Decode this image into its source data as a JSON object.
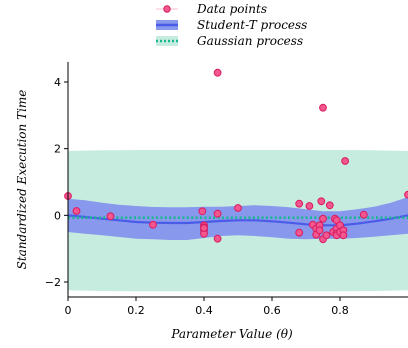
{
  "chart_data": {
    "type": "scatter",
    "xlabel": "Parameter Value (θ)",
    "ylabel": "Standardized Execution Time",
    "xlim": [
      0,
      1.0
    ],
    "ylim": [
      -2.45,
      4.6
    ],
    "x_ticks": [
      0,
      0.2,
      0.4,
      0.6,
      0.8
    ],
    "x_tick_labels": [
      "0",
      "0.2",
      "0.4",
      "0.6",
      "0.8"
    ],
    "y_ticks": [
      -2,
      0,
      2,
      4
    ],
    "y_tick_labels": [
      "−2",
      "0",
      "2",
      "4"
    ],
    "grid": false,
    "legend_position": "top-center",
    "legend": [
      {
        "label": "Data points"
      },
      {
        "label": "Student-T process"
      },
      {
        "label": "Gaussian process"
      }
    ],
    "colors": {
      "points_fill": "#f2578f",
      "points_stroke": "#d81b60",
      "student_t_line": "#4a5be8",
      "student_t_band": "#8898ec",
      "gaussian_line": "#17b890",
      "gaussian_band": "#c6ece0"
    },
    "series": [
      {
        "name": "Data points",
        "type": "scatter",
        "x": [
          0.0,
          0.025,
          0.125,
          0.25,
          0.395,
          0.4,
          0.4,
          0.4,
          0.4,
          0.4,
          0.44,
          0.44,
          0.44,
          0.5,
          0.68,
          0.68,
          0.71,
          0.72,
          0.73,
          0.73,
          0.74,
          0.74,
          0.745,
          0.75,
          0.75,
          0.75,
          0.76,
          0.77,
          0.78,
          0.785,
          0.79,
          0.79,
          0.79,
          0.79,
          0.8,
          0.8,
          0.81,
          0.81,
          0.815,
          0.87,
          1.0
        ],
        "y": [
          0.58,
          0.13,
          -0.03,
          -0.28,
          0.12,
          -0.3,
          -0.36,
          -0.45,
          -0.55,
          -0.38,
          4.28,
          0.05,
          -0.7,
          0.22,
          0.35,
          -0.52,
          0.28,
          -0.28,
          -0.4,
          -0.58,
          -0.3,
          -0.45,
          0.42,
          3.23,
          -0.72,
          -0.1,
          -0.6,
          0.3,
          -0.5,
          -0.1,
          -0.15,
          -0.4,
          -0.55,
          -0.6,
          -0.3,
          -0.5,
          -0.45,
          -0.6,
          1.63,
          0.02,
          0.62
        ]
      },
      {
        "name": "Student-T process",
        "type": "line",
        "x": [
          0.0,
          0.05,
          0.1,
          0.15,
          0.2,
          0.25,
          0.3,
          0.35,
          0.4,
          0.45,
          0.5,
          0.55,
          0.6,
          0.65,
          0.7,
          0.75,
          0.8,
          0.85,
          0.9,
          0.95,
          1.0
        ],
        "y": [
          0.0,
          -0.05,
          -0.1,
          -0.15,
          -0.2,
          -0.22,
          -0.23,
          -0.23,
          -0.2,
          -0.17,
          -0.15,
          -0.15,
          -0.18,
          -0.22,
          -0.27,
          -0.3,
          -0.3,
          -0.25,
          -0.18,
          -0.1,
          0.0
        ],
        "lower": [
          -0.5,
          -0.55,
          -0.6,
          -0.65,
          -0.7,
          -0.72,
          -0.74,
          -0.74,
          -0.68,
          -0.62,
          -0.6,
          -0.62,
          -0.66,
          -0.7,
          -0.72,
          -0.7,
          -0.7,
          -0.68,
          -0.64,
          -0.6,
          -0.55
        ],
        "upper": [
          0.5,
          0.45,
          0.38,
          0.32,
          0.28,
          0.25,
          0.24,
          0.24,
          0.26,
          0.26,
          0.28,
          0.3,
          0.28,
          0.24,
          0.18,
          0.12,
          0.12,
          0.18,
          0.26,
          0.38,
          0.55
        ]
      },
      {
        "name": "Gaussian process",
        "type": "line",
        "x": [
          0.0,
          0.1,
          0.2,
          0.3,
          0.4,
          0.5,
          0.6,
          0.7,
          0.8,
          0.9,
          1.0
        ],
        "y": [
          -0.07,
          -0.07,
          -0.07,
          -0.07,
          -0.07,
          -0.07,
          -0.07,
          -0.07,
          -0.07,
          -0.07,
          -0.07
        ],
        "lower": [
          -2.25,
          -2.27,
          -2.28,
          -2.28,
          -2.28,
          -2.28,
          -2.28,
          -2.28,
          -2.28,
          -2.27,
          -2.25
        ],
        "upper": [
          1.93,
          1.95,
          1.96,
          1.96,
          1.96,
          1.96,
          1.96,
          1.96,
          1.96,
          1.95,
          1.93
        ]
      }
    ]
  }
}
